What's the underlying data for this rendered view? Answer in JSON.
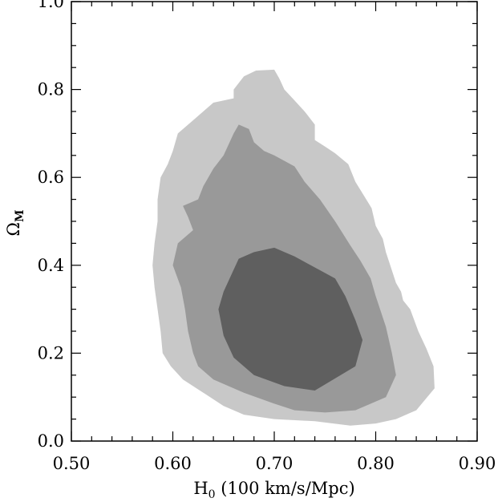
{
  "chart_data": {
    "type": "contour",
    "xlabel": {
      "main": "H",
      "sub": "0",
      "rest": " (100 km/s/Mpc)"
    },
    "ylabel": {
      "main": "Ω",
      "sub": "M"
    },
    "xlim": [
      0.5,
      0.9
    ],
    "ylim": [
      0.0,
      1.0
    ],
    "x_ticks": [
      "0.50",
      "0.60",
      "0.70",
      "0.80",
      "0.90"
    ],
    "y_ticks": [
      "0.0",
      "0.2",
      "0.4",
      "0.6",
      "0.8",
      "1.0"
    ],
    "x_tick_values": [
      0.5,
      0.6,
      0.7,
      0.8,
      0.9
    ],
    "y_tick_values": [
      0.0,
      0.2,
      0.4,
      0.6,
      0.8,
      1.0
    ],
    "x_minor_step": 0.02,
    "y_minor_step": 0.05,
    "grid": false,
    "contours": [
      {
        "level": "outer",
        "color": "#c8c8c8",
        "points": [
          [
            0.67,
            0.83
          ],
          [
            0.682,
            0.843
          ],
          [
            0.7,
            0.845
          ],
          [
            0.705,
            0.825
          ],
          [
            0.71,
            0.8
          ],
          [
            0.72,
            0.775
          ],
          [
            0.73,
            0.75
          ],
          [
            0.74,
            0.72
          ],
          [
            0.74,
            0.685
          ],
          [
            0.75,
            0.67
          ],
          [
            0.76,
            0.655
          ],
          [
            0.773,
            0.63
          ],
          [
            0.78,
            0.59
          ],
          [
            0.788,
            0.56
          ],
          [
            0.796,
            0.53
          ],
          [
            0.8,
            0.49
          ],
          [
            0.807,
            0.46
          ],
          [
            0.81,
            0.43
          ],
          [
            0.815,
            0.395
          ],
          [
            0.82,
            0.36
          ],
          [
            0.825,
            0.34
          ],
          [
            0.827,
            0.32
          ],
          [
            0.834,
            0.3
          ],
          [
            0.842,
            0.25
          ],
          [
            0.85,
            0.21
          ],
          [
            0.857,
            0.17
          ],
          [
            0.858,
            0.12
          ],
          [
            0.84,
            0.07
          ],
          [
            0.82,
            0.05
          ],
          [
            0.8,
            0.04
          ],
          [
            0.775,
            0.035
          ],
          [
            0.74,
            0.045
          ],
          [
            0.7,
            0.05
          ],
          [
            0.67,
            0.06
          ],
          [
            0.65,
            0.08
          ],
          [
            0.63,
            0.11
          ],
          [
            0.61,
            0.14
          ],
          [
            0.598,
            0.17
          ],
          [
            0.59,
            0.2
          ],
          [
            0.588,
            0.25
          ],
          [
            0.585,
            0.3
          ],
          [
            0.582,
            0.35
          ],
          [
            0.58,
            0.4
          ],
          [
            0.582,
            0.45
          ],
          [
            0.585,
            0.5
          ],
          [
            0.585,
            0.55
          ],
          [
            0.588,
            0.6
          ],
          [
            0.595,
            0.63
          ],
          [
            0.6,
            0.66
          ],
          [
            0.605,
            0.7
          ],
          [
            0.62,
            0.73
          ],
          [
            0.64,
            0.77
          ],
          [
            0.66,
            0.78
          ],
          [
            0.66,
            0.8
          ]
        ]
      },
      {
        "level": "middle",
        "color": "#999999",
        "points": [
          [
            0.66,
            0.7
          ],
          [
            0.665,
            0.72
          ],
          [
            0.675,
            0.71
          ],
          [
            0.68,
            0.68
          ],
          [
            0.69,
            0.66
          ],
          [
            0.7,
            0.65
          ],
          [
            0.72,
            0.625
          ],
          [
            0.73,
            0.59
          ],
          [
            0.745,
            0.55
          ],
          [
            0.76,
            0.5
          ],
          [
            0.775,
            0.445
          ],
          [
            0.785,
            0.41
          ],
          [
            0.795,
            0.37
          ],
          [
            0.8,
            0.33
          ],
          [
            0.81,
            0.26
          ],
          [
            0.816,
            0.2
          ],
          [
            0.82,
            0.15
          ],
          [
            0.81,
            0.1
          ],
          [
            0.78,
            0.07
          ],
          [
            0.75,
            0.065
          ],
          [
            0.72,
            0.07
          ],
          [
            0.7,
            0.085
          ],
          [
            0.67,
            0.11
          ],
          [
            0.64,
            0.14
          ],
          [
            0.625,
            0.17
          ],
          [
            0.62,
            0.2
          ],
          [
            0.615,
            0.25
          ],
          [
            0.612,
            0.3
          ],
          [
            0.608,
            0.35
          ],
          [
            0.6,
            0.4
          ],
          [
            0.605,
            0.45
          ],
          [
            0.62,
            0.48
          ],
          [
            0.615,
            0.51
          ],
          [
            0.61,
            0.535
          ],
          [
            0.625,
            0.55
          ],
          [
            0.63,
            0.58
          ],
          [
            0.64,
            0.62
          ],
          [
            0.65,
            0.65
          ]
        ]
      },
      {
        "level": "inner",
        "color": "#5f5f5f",
        "points": [
          [
            0.68,
            0.43
          ],
          [
            0.7,
            0.44
          ],
          [
            0.72,
            0.42
          ],
          [
            0.74,
            0.395
          ],
          [
            0.76,
            0.37
          ],
          [
            0.77,
            0.33
          ],
          [
            0.78,
            0.275
          ],
          [
            0.787,
            0.23
          ],
          [
            0.78,
            0.17
          ],
          [
            0.74,
            0.115
          ],
          [
            0.71,
            0.125
          ],
          [
            0.68,
            0.15
          ],
          [
            0.66,
            0.19
          ],
          [
            0.65,
            0.24
          ],
          [
            0.645,
            0.3
          ],
          [
            0.65,
            0.34
          ],
          [
            0.66,
            0.39
          ],
          [
            0.665,
            0.415
          ]
        ]
      }
    ]
  }
}
